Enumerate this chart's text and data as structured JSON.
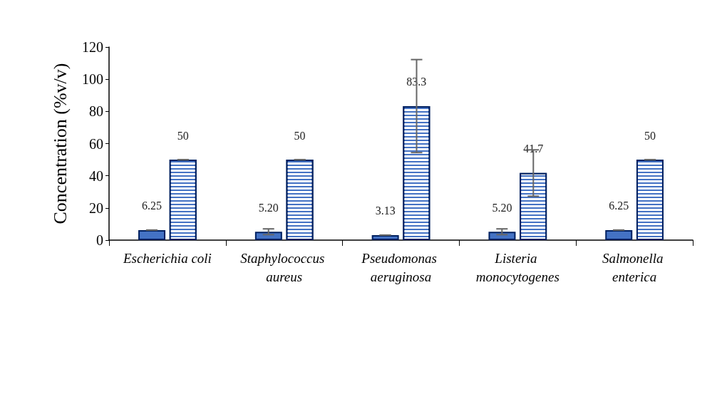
{
  "chart_data": {
    "type": "bar",
    "ylabel": "Concentration (%v/v)",
    "categories": [
      "Escherichia coli",
      "Staphylococcus aureus",
      "Pseudomonas aeruginosa",
      "Listeria monocytogenes",
      "Salmonella enterica"
    ],
    "series": [
      {
        "color": "#4472c4",
        "values": [
          6.25,
          5.2,
          3.13,
          5.2,
          6.25
        ],
        "errors": [
          0,
          1.8,
          0,
          1.8,
          0
        ],
        "value_labels": [
          "6.25",
          "5.20",
          "3.13",
          "5.20",
          "6.25"
        ]
      },
      {
        "color": "#4472c4",
        "values": [
          50,
          50,
          83.3,
          41.7,
          50
        ],
        "errors": [
          0,
          0,
          28.9,
          14.4,
          0
        ],
        "value_labels": [
          "50",
          "50",
          "83.3",
          "41.7",
          "50"
        ]
      }
    ],
    "ylim": [
      0,
      120
    ],
    "yticks": [
      0,
      20,
      40,
      60,
      80,
      100,
      120
    ],
    "grid": false
  }
}
